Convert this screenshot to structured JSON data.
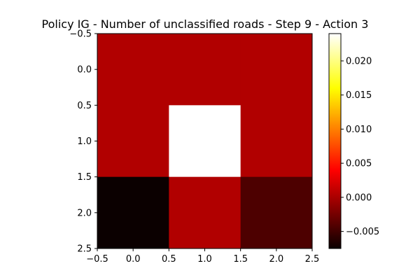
{
  "chart_data": {
    "type": "heatmap",
    "title": "Policy IG - Number of unclassified roads - Step 9 - Action 3",
    "xlabel": "",
    "ylabel": "",
    "xlim": [
      -0.5,
      2.5
    ],
    "ylim": [
      2.5,
      -0.5
    ],
    "x_ticks": [
      -0.5,
      0.0,
      0.5,
      1.0,
      1.5,
      2.0,
      2.5
    ],
    "x_tick_labels": [
      "−0.5",
      "0.0",
      "0.5",
      "1.0",
      "1.5",
      "2.0",
      "2.5"
    ],
    "y_ticks": [
      -0.5,
      0.0,
      0.5,
      1.0,
      1.5,
      2.0,
      2.5
    ],
    "y_tick_labels": [
      "−0.5",
      "0.0",
      "0.5",
      "1.0",
      "1.5",
      "2.0",
      "2.5"
    ],
    "grid": false,
    "colormap": "hot",
    "values": [
      [
        0.0,
        0.0,
        0.0
      ],
      [
        0.0,
        0.024,
        0.0
      ],
      [
        -0.0075,
        0.0,
        -0.0045
      ]
    ],
    "colorbar": {
      "vmin": -0.0075,
      "vmax": 0.024,
      "ticks": [
        -0.005,
        0.0,
        0.005,
        0.01,
        0.015,
        0.02
      ],
      "tick_labels": [
        "−0.005",
        "0.000",
        "0.005",
        "0.010",
        "0.015",
        "0.020"
      ]
    }
  }
}
